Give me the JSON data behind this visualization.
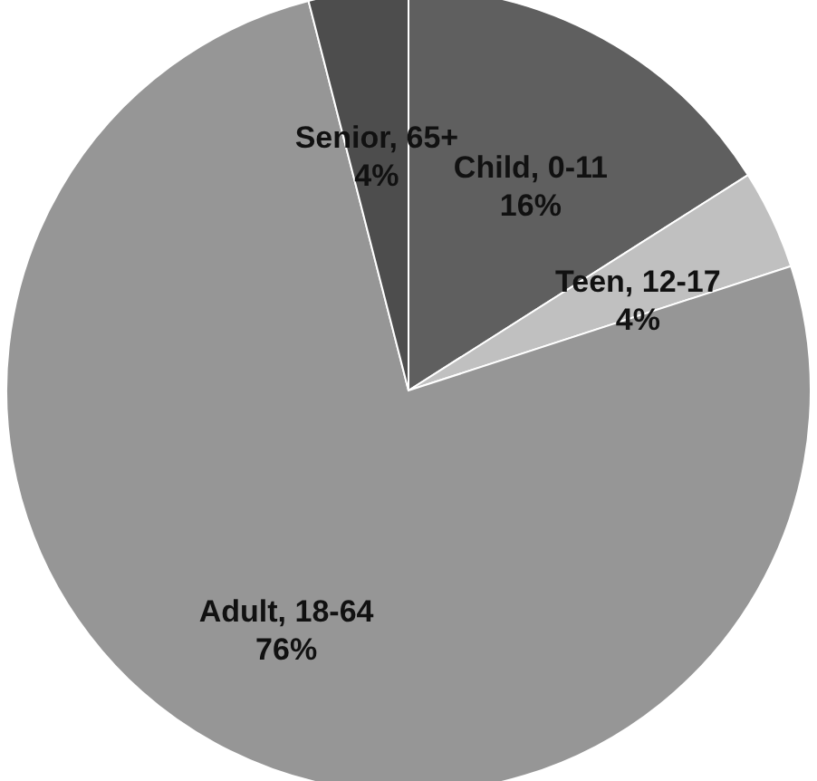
{
  "chart_data": {
    "type": "pie",
    "categories": [
      "Child, 0-11",
      "Teen, 12-17",
      "Adult, 18-64",
      "Senior, 65+"
    ],
    "values": [
      16,
      4,
      76,
      4
    ],
    "value_labels": [
      "16%",
      "4%",
      "76%",
      "4%"
    ],
    "colors": [
      "#5f5f5f",
      "#c0c0c0",
      "#969696",
      "#4d4d4d"
    ]
  }
}
